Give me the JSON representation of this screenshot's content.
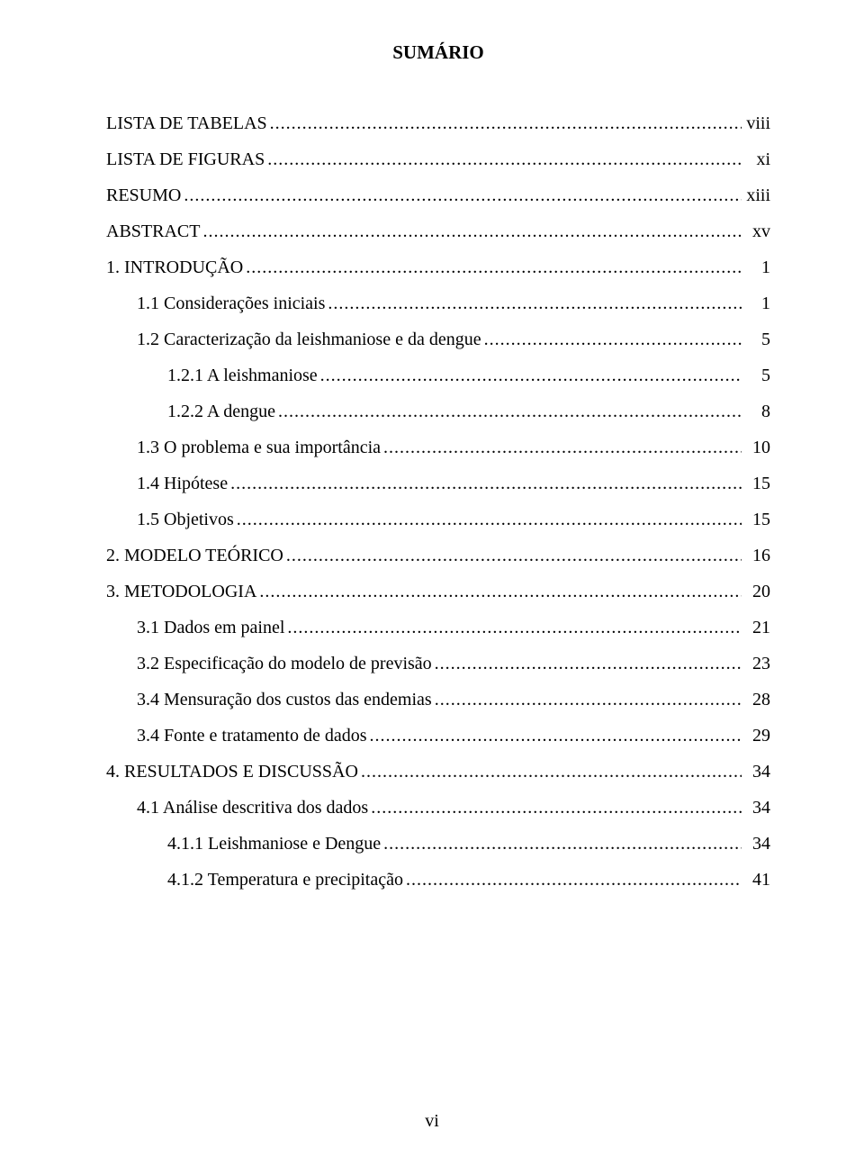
{
  "title": "SUMÁRIO",
  "footer": "vi",
  "colors": {
    "background": "#ffffff",
    "text": "#000000"
  },
  "typography": {
    "font_family": "Times New Roman",
    "title_fontsize_pt": 16,
    "body_fontsize_pt": 15
  },
  "entries": [
    {
      "label": "LISTA DE TABELAS",
      "page": "viii",
      "indent": 0,
      "gap": false
    },
    {
      "label": "LISTA DE FIGURAS",
      "page": "xi",
      "indent": 0,
      "gap": true
    },
    {
      "label": "RESUMO",
      "page": "xiii",
      "indent": 0,
      "gap": true
    },
    {
      "label": "ABSTRACT",
      "page": "xv",
      "indent": 0,
      "gap": true
    },
    {
      "label": "1. INTRODUÇÃO",
      "page": "1",
      "indent": 0,
      "gap": true
    },
    {
      "label": "1.1 Considerações iniciais",
      "page": "1",
      "indent": 1,
      "gap": true
    },
    {
      "label": "1.2 Caracterização da leishmaniose e da dengue",
      "page": "5",
      "indent": 1,
      "gap": true
    },
    {
      "label": "1.2.1 A leishmaniose",
      "page": "5",
      "indent": 2,
      "gap": true
    },
    {
      "label": "1.2.2 A dengue",
      "page": "8",
      "indent": 2,
      "gap": true
    },
    {
      "label": "1.3 O problema e sua importância",
      "page": "10",
      "indent": 1,
      "gap": true
    },
    {
      "label": "1.4 Hipótese",
      "page": "15",
      "indent": 1,
      "gap": true
    },
    {
      "label": "1.5 Objetivos",
      "page": "15",
      "indent": 1,
      "gap": true
    },
    {
      "label": "2. MODELO TEÓRICO",
      "page": "16",
      "indent": 0,
      "gap": true
    },
    {
      "label": "3. METODOLOGIA",
      "page": "20",
      "indent": 0,
      "gap": true
    },
    {
      "label": "3.1 Dados em painel",
      "page": "21",
      "indent": 1,
      "gap": true
    },
    {
      "label": "3.2 Especificação do modelo de previsão",
      "page": "23",
      "indent": 1,
      "gap": true
    },
    {
      "label": "3.4 Mensuração dos custos das endemias",
      "page": "28",
      "indent": 1,
      "gap": true
    },
    {
      "label": "3.4 Fonte e tratamento de dados",
      "page": "29",
      "indent": 1,
      "gap": true
    },
    {
      "label": "4. RESULTADOS E DISCUSSÃO",
      "page": "34",
      "indent": 0,
      "gap": true
    },
    {
      "label": "4.1 Análise descritiva dos dados",
      "page": "34",
      "indent": 1,
      "gap": true
    },
    {
      "label": "4.1.1 Leishmaniose e Dengue",
      "page": "34",
      "indent": 2,
      "gap": true
    },
    {
      "label": "4.1.2 Temperatura e precipitação",
      "page": "41",
      "indent": 2,
      "gap": true
    }
  ]
}
